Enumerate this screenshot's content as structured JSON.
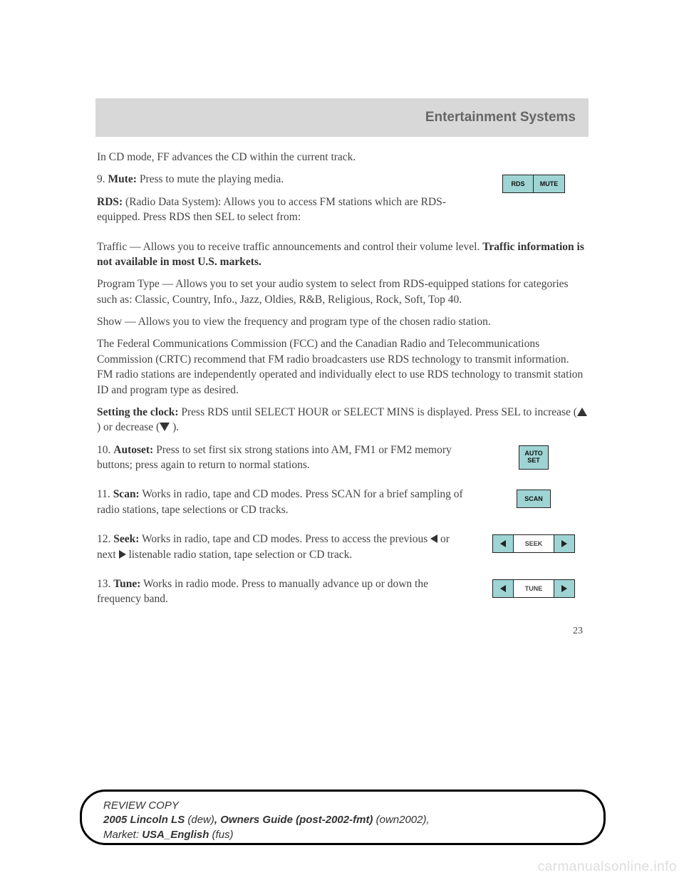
{
  "header": {
    "title": "Entertainment Systems"
  },
  "body": {
    "p_cd": "In CD mode, FF advances the CD within the current track.",
    "item9_pre": "9. ",
    "item9_b": "Mute:",
    "item9_rest": " Press to mute the playing media.",
    "rds_b": "RDS:",
    "rds_rest": " (Radio Data System): Allows you to access FM stations which are RDS- equipped. Press RDS then SEL to select from:",
    "traffic_pre": "Traffic — Allows you to receive traffic announcements and control their volume level. ",
    "traffic_b": "Traffic information is not available in most U.S. markets.",
    "ptype": "Program Type — Allows you to set your audio system to select from RDS-equipped stations for categories such as: Classic, Country, Info., Jazz, Oldies, R&B, Religious, Rock, Soft, Top 40.",
    "show": "Show — Allows you to view the frequency and program type of the chosen radio station.",
    "fcc": "The Federal Communications Commission (FCC) and the Canadian Radio and Telecommunications Commission (CRTC) recommend that FM radio broadcasters use RDS technology to transmit information. FM radio stations are independently operated and individually elect to use RDS technology to transmit station ID and program type as desired.",
    "clock_b": "Setting the clock:",
    "clock_rest1": " Press RDS until SELECT HOUR or SELECT MINS is displayed. Press SEL to increase (",
    "clock_rest2": " ) or decrease (",
    "clock_rest3": " ).",
    "item10_pre": "10. ",
    "item10_b": "Autoset:",
    "item10_rest": " Press to set first six strong stations into AM, FM1 or FM2 memory buttons; press again to return to normal stations.",
    "item11_pre": "11. ",
    "item11_b": "Scan:",
    "item11_rest": " Works in radio, tape and CD modes. Press SCAN for a brief sampling of radio stations, tape selections or CD tracks.",
    "item12_pre": "12. ",
    "item12_b": "Seek:",
    "item12_rest1": " Works in radio, tape and CD modes. Press to access the previous ",
    "item12_rest2": " or next ",
    "item12_rest3": " listenable radio station, tape selection or CD track.",
    "item13_pre": "13. ",
    "item13_b": "Tune:",
    "item13_rest": " Works in radio mode. Press to manually advance up or down the frequency band."
  },
  "buttons": {
    "rds": "RDS",
    "mute": "MUTE",
    "auto": "AUTO",
    "set": "SET",
    "scan": "SCAN",
    "seek": "SEEK",
    "tune": "TUNE"
  },
  "page_number": "23",
  "footer": {
    "line1": "REVIEW COPY",
    "l2a": "2005 Lincoln LS ",
    "l2b": "(dew)",
    "l2c": ", ",
    "l2d": "Owners Guide (post-2002-fmt) ",
    "l2e": "(own2002),",
    "l3a": "Market: ",
    "l3b": "USA_English ",
    "l3c": "(fus)"
  },
  "watermark": "carmanualsonline.info"
}
